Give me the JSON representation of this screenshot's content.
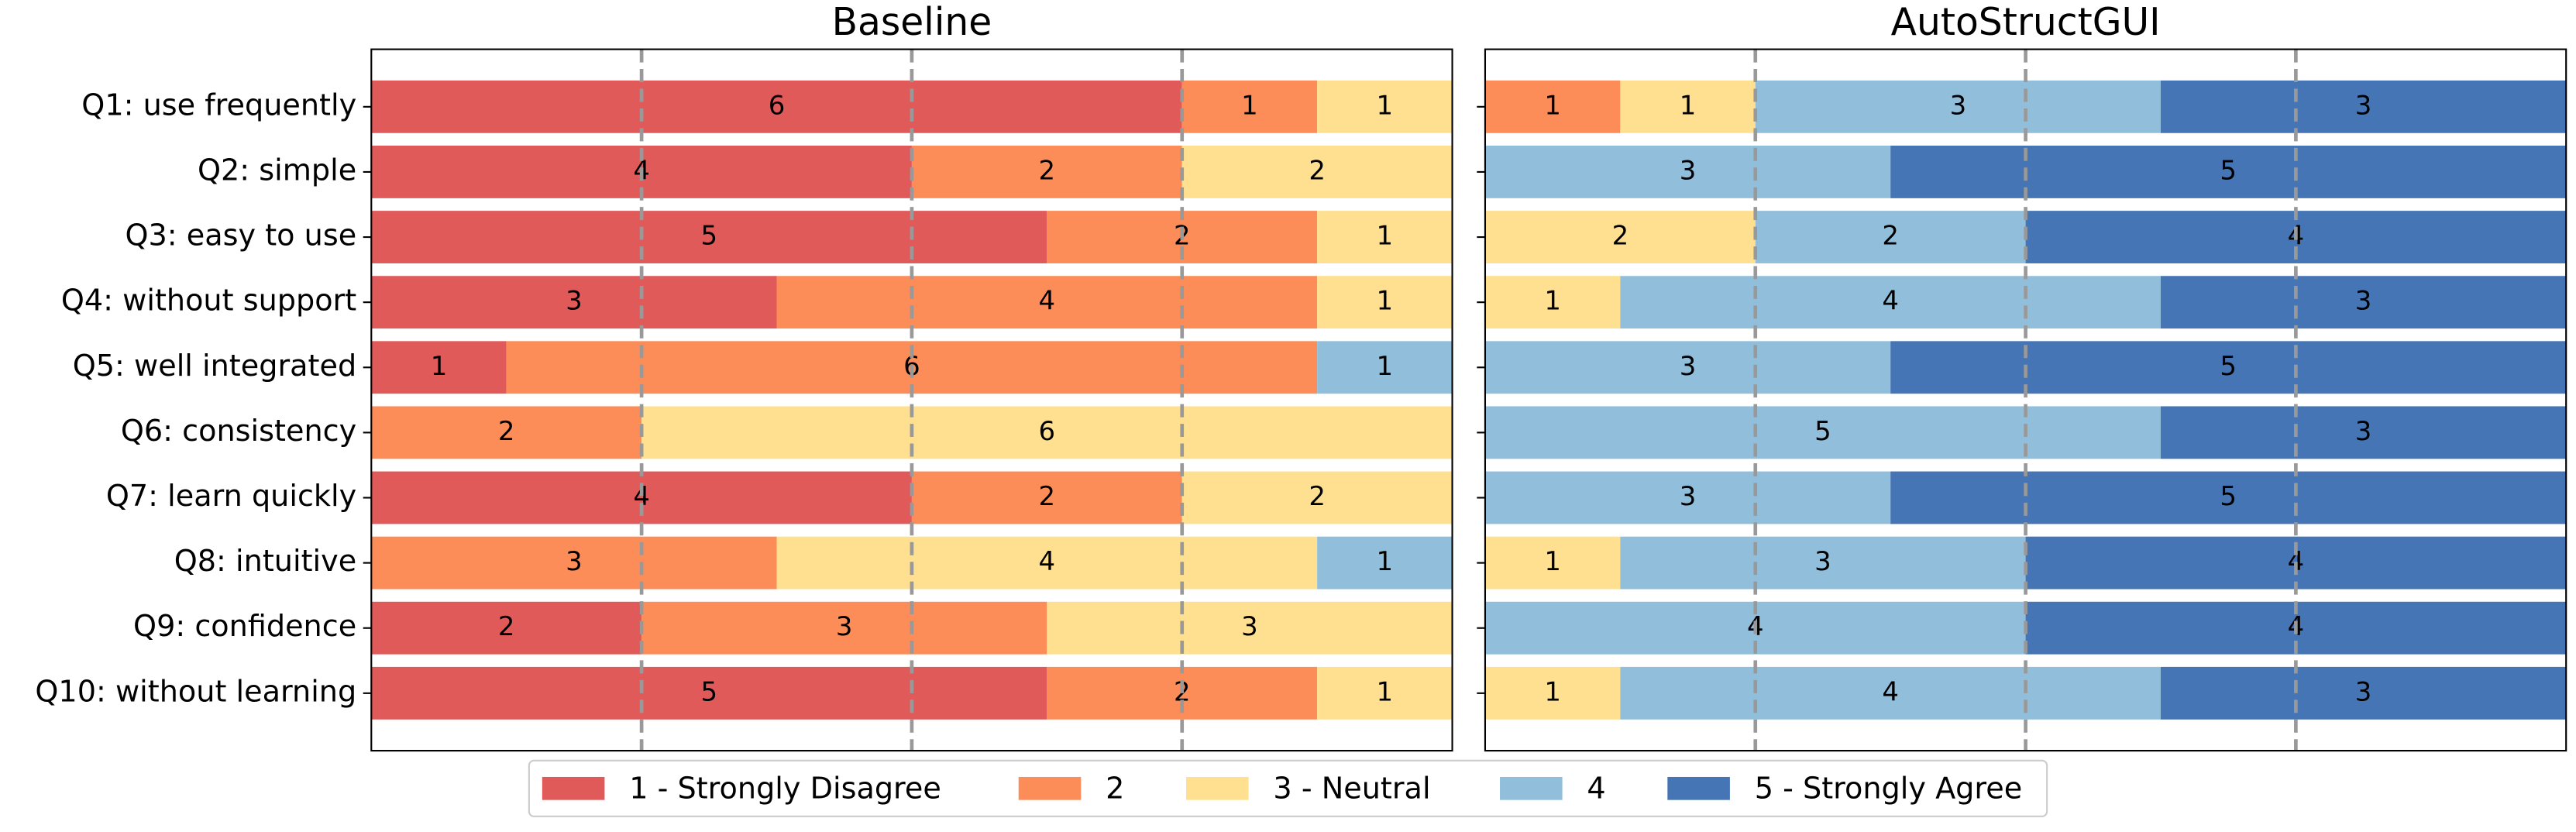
{
  "legend": [
    {
      "label": "1 - Strongly Disagree",
      "color": "#e05a5a"
    },
    {
      "label": "2",
      "color": "#fc8d59"
    },
    {
      "label": "3 - Neutral",
      "color": "#fee090"
    },
    {
      "label": "4",
      "color": "#91bfdb"
    },
    {
      "label": "5 - Strongly Agree",
      "color": "#4575b4"
    }
  ],
  "chart_data": [
    {
      "type": "stacked_barh",
      "title": "Baseline",
      "categories": [
        "Q1: use frequently",
        "Q2: simple",
        "Q3: easy to use",
        "Q4: without support",
        "Q5: well integrated",
        "Q6: consistency",
        "Q7: learn quickly",
        "Q8: intuitive",
        "Q9: confidence",
        "Q10: without learning"
      ],
      "xlim": [
        0,
        8
      ],
      "gridlines": [
        2,
        4,
        6
      ],
      "series": [
        {
          "values": [
            6,
            4,
            5,
            3,
            1,
            0,
            4,
            0,
            2,
            5
          ]
        },
        {
          "values": [
            1,
            2,
            2,
            4,
            6,
            2,
            2,
            3,
            3,
            2
          ]
        },
        {
          "values": [
            1,
            2,
            1,
            1,
            0,
            6,
            2,
            4,
            3,
            1
          ]
        },
        {
          "values": [
            0,
            0,
            0,
            0,
            1,
            0,
            0,
            1,
            0,
            0
          ]
        },
        {
          "values": [
            0,
            0,
            0,
            0,
            0,
            0,
            0,
            0,
            0,
            0
          ]
        }
      ]
    },
    {
      "type": "stacked_barh",
      "title": "AutoStructGUI",
      "xlim": [
        0,
        8
      ],
      "gridlines": [
        2,
        4,
        6
      ],
      "series": [
        {
          "values": [
            0,
            0,
            0,
            0,
            0,
            0,
            0,
            0,
            0,
            0
          ]
        },
        {
          "values": [
            1,
            0,
            0,
            0,
            0,
            0,
            0,
            0,
            0,
            0
          ]
        },
        {
          "values": [
            1,
            0,
            2,
            1,
            0,
            0,
            0,
            1,
            0,
            1
          ]
        },
        {
          "values": [
            3,
            3,
            2,
            4,
            3,
            5,
            3,
            3,
            4,
            4
          ]
        },
        {
          "values": [
            3,
            5,
            4,
            3,
            5,
            3,
            5,
            4,
            4,
            3
          ]
        }
      ]
    }
  ]
}
